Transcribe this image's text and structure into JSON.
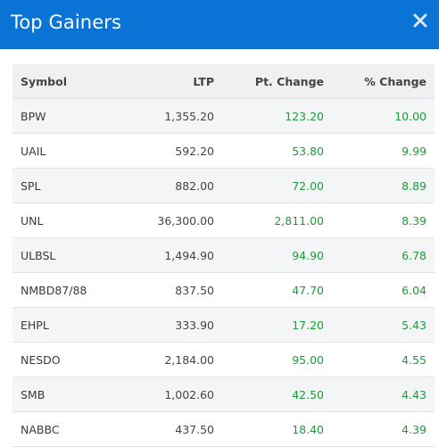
{
  "modal": {
    "title": "Top Gainers",
    "close_icon": "close-icon"
  },
  "colors": {
    "header_bg": "#0a74d6",
    "positive": "#1f9a3a"
  },
  "table": {
    "columns": [
      "Symbol",
      "LTP",
      "Pt. Change",
      "% Change"
    ],
    "rows": [
      {
        "symbol": "BPW",
        "ltp": "1,355.20",
        "pt_change": "123.20",
        "pct_change": "10.00"
      },
      {
        "symbol": "UAIL",
        "ltp": "592.20",
        "pt_change": "53.80",
        "pct_change": "9.99"
      },
      {
        "symbol": "SPL",
        "ltp": "882.00",
        "pt_change": "72.00",
        "pct_change": "8.89"
      },
      {
        "symbol": "UNL",
        "ltp": "36,300.00",
        "pt_change": "2,811.00",
        "pct_change": "8.39"
      },
      {
        "symbol": "ULBSL",
        "ltp": "1,494.90",
        "pt_change": "94.90",
        "pct_change": "6.78"
      },
      {
        "symbol": "NMBD87/88",
        "ltp": "837.50",
        "pt_change": "47.70",
        "pct_change": "6.04"
      },
      {
        "symbol": "EHPL",
        "ltp": "333.90",
        "pt_change": "17.20",
        "pct_change": "5.43"
      },
      {
        "symbol": "NESDO",
        "ltp": "2,184.00",
        "pt_change": "95.00",
        "pct_change": "4.55"
      },
      {
        "symbol": "SMB",
        "ltp": "1,002.60",
        "pt_change": "42.50",
        "pct_change": "4.43"
      },
      {
        "symbol": "NABBC",
        "ltp": "437.50",
        "pt_change": "18.40",
        "pct_change": "4.39"
      }
    ]
  }
}
